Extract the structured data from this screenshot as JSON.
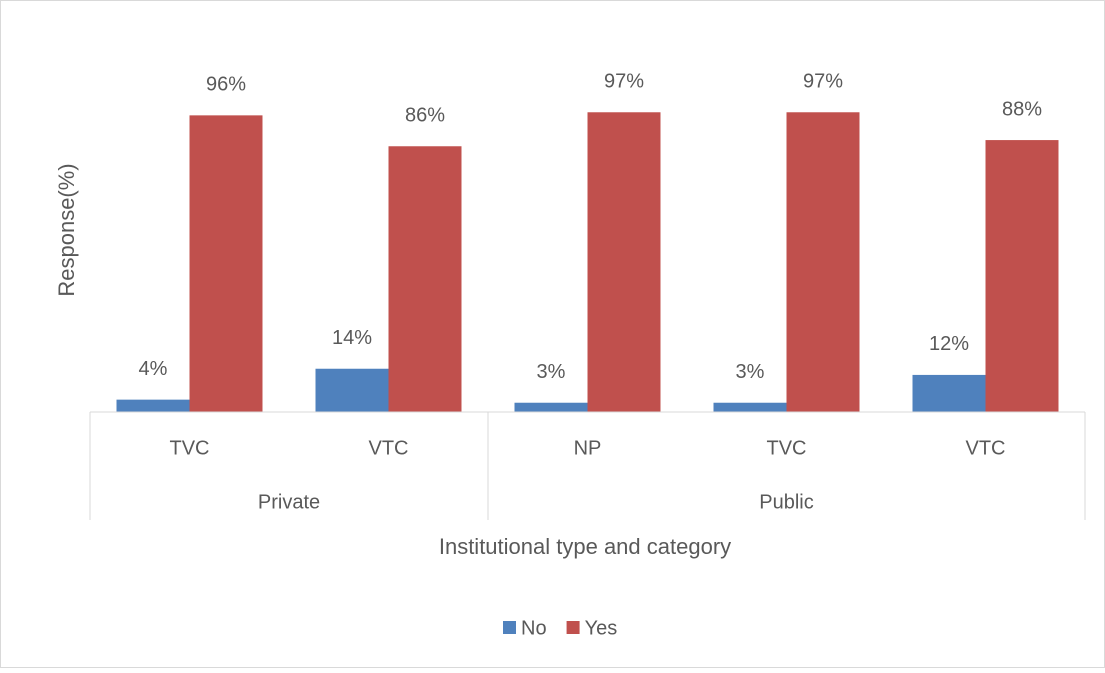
{
  "chart_data": {
    "type": "bar",
    "y_label": "Response(%)",
    "x_label": "Institutional type and category",
    "groups": [
      {
        "label": "Private",
        "categories": [
          "TVC",
          "VTC"
        ]
      },
      {
        "label": "Public",
        "categories": [
          "NP",
          "TVC",
          "VTC"
        ]
      }
    ],
    "series": [
      {
        "name": "No",
        "color": "#4f81bd",
        "values": [
          4,
          14,
          3,
          3,
          12
        ],
        "value_labels": [
          "4%",
          "14%",
          "3%",
          "3%",
          "12%"
        ]
      },
      {
        "name": "Yes",
        "color": "#c0504d",
        "values": [
          96,
          86,
          97,
          97,
          88
        ],
        "value_labels": [
          "96%",
          "86%",
          "97%",
          "97%",
          "88%"
        ]
      }
    ],
    "ylim": [
      0,
      100
    ],
    "legend": "bottom"
  }
}
